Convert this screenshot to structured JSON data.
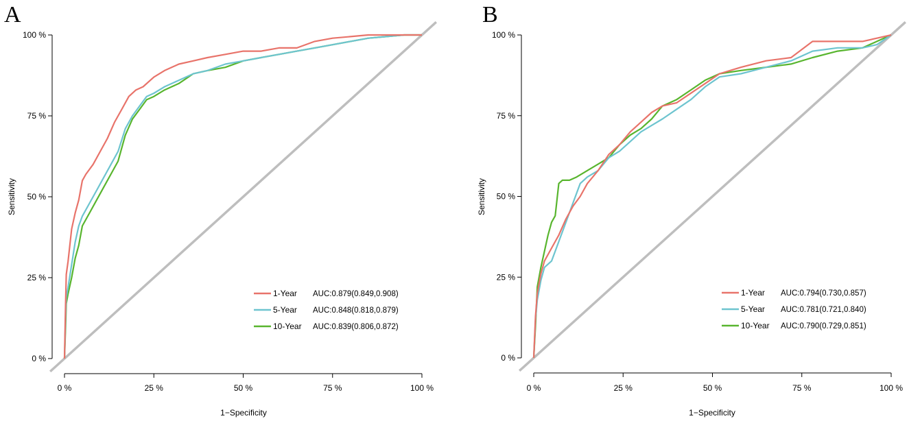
{
  "chart_data": [
    {
      "panel": "A",
      "type": "line",
      "xlabel": "1−Specificity",
      "ylabel": "Sensitivity",
      "xlim": [
        0,
        1
      ],
      "ylim": [
        0,
        1
      ],
      "x_ticks": [
        "0 %",
        "25 %",
        "50 %",
        "75 %",
        "100 %"
      ],
      "y_ticks": [
        "0 %",
        "25 %",
        "50 %",
        "75 %",
        "100 %"
      ],
      "legend_position": "bottom-right",
      "reference_line": {
        "x": [
          -0.04,
          1.04
        ],
        "y": [
          -0.04,
          1.04
        ],
        "color": "#bebebe"
      },
      "series": [
        {
          "name": "1-Year",
          "auc": "AUC:0.879(0.849,0.908)",
          "color": "#e8736a",
          "x": [
            0,
            0.003,
            0.005,
            0.01,
            0.015,
            0.02,
            0.03,
            0.04,
            0.05,
            0.06,
            0.08,
            0.1,
            0.12,
            0.14,
            0.16,
            0.18,
            0.2,
            0.22,
            0.25,
            0.28,
            0.32,
            0.36,
            0.4,
            0.45,
            0.5,
            0.55,
            0.6,
            0.65,
            0.7,
            0.75,
            0.8,
            0.85,
            0.9,
            0.95,
            1.0
          ],
          "y": [
            0,
            0.17,
            0.26,
            0.3,
            0.35,
            0.4,
            0.45,
            0.49,
            0.55,
            0.57,
            0.6,
            0.64,
            0.68,
            0.73,
            0.77,
            0.81,
            0.83,
            0.84,
            0.87,
            0.89,
            0.91,
            0.92,
            0.93,
            0.94,
            0.95,
            0.95,
            0.96,
            0.96,
            0.98,
            0.99,
            0.995,
            1.0,
            1.0,
            1.0,
            1.0
          ]
        },
        {
          "name": "5-Year",
          "auc": "AUC:0.848(0.818,0.879)",
          "color": "#6dc4cf",
          "x": [
            0,
            0.003,
            0.005,
            0.01,
            0.02,
            0.03,
            0.04,
            0.05,
            0.07,
            0.09,
            0.11,
            0.13,
            0.15,
            0.17,
            0.19,
            0.21,
            0.23,
            0.25,
            0.28,
            0.32,
            0.36,
            0.4,
            0.45,
            0.5,
            0.55,
            0.6,
            0.65,
            0.7,
            0.75,
            0.8,
            0.85,
            0.9,
            0.95,
            1.0
          ],
          "y": [
            0,
            0.13,
            0.19,
            0.22,
            0.29,
            0.36,
            0.41,
            0.44,
            0.48,
            0.52,
            0.56,
            0.6,
            0.64,
            0.71,
            0.75,
            0.78,
            0.81,
            0.82,
            0.84,
            0.86,
            0.88,
            0.89,
            0.91,
            0.92,
            0.93,
            0.94,
            0.95,
            0.96,
            0.97,
            0.98,
            0.99,
            0.995,
            1.0,
            1.0
          ]
        },
        {
          "name": "10-Year",
          "auc": "AUC:0.839(0.806,0.872)",
          "color": "#58b52e",
          "x": [
            0,
            0.003,
            0.005,
            0.01,
            0.02,
            0.03,
            0.04,
            0.05,
            0.07,
            0.09,
            0.11,
            0.13,
            0.15,
            0.17,
            0.19,
            0.21,
            0.23,
            0.25,
            0.28,
            0.32,
            0.36,
            0.4,
            0.45,
            0.5,
            0.55,
            0.6,
            0.65,
            0.7,
            0.75,
            0.8,
            0.85,
            0.9,
            0.95,
            1.0
          ],
          "y": [
            0,
            0.1,
            0.17,
            0.2,
            0.25,
            0.31,
            0.35,
            0.41,
            0.45,
            0.49,
            0.53,
            0.57,
            0.61,
            0.69,
            0.74,
            0.77,
            0.8,
            0.81,
            0.83,
            0.85,
            0.88,
            0.89,
            0.9,
            0.92,
            0.93,
            0.94,
            0.95,
            0.96,
            0.97,
            0.98,
            0.99,
            0.995,
            1.0,
            1.0
          ]
        }
      ]
    },
    {
      "panel": "B",
      "type": "line",
      "xlabel": "1−Specificity",
      "ylabel": "Sensitivity",
      "xlim": [
        0,
        1
      ],
      "ylim": [
        0,
        1
      ],
      "x_ticks": [
        "0 %",
        "25 %",
        "50 %",
        "75 %",
        "100 %"
      ],
      "y_ticks": [
        "0 %",
        "25 %",
        "50 %",
        "75 %",
        "100 %"
      ],
      "legend_position": "bottom-right",
      "reference_line": {
        "x": [
          -0.04,
          1.04
        ],
        "y": [
          -0.04,
          1.04
        ],
        "color": "#bebebe"
      },
      "series": [
        {
          "name": "1-Year",
          "auc": "AUC:0.794(0.730,0.857)",
          "color": "#e8736a",
          "x": [
            0,
            0.005,
            0.01,
            0.02,
            0.03,
            0.05,
            0.07,
            0.09,
            0.11,
            0.13,
            0.15,
            0.18,
            0.21,
            0.24,
            0.27,
            0.3,
            0.33,
            0.36,
            0.4,
            0.44,
            0.48,
            0.52,
            0.58,
            0.65,
            0.72,
            0.78,
            0.85,
            0.92,
            0.96,
            1.0
          ],
          "y": [
            0,
            0.13,
            0.2,
            0.26,
            0.3,
            0.34,
            0.38,
            0.43,
            0.47,
            0.5,
            0.54,
            0.58,
            0.63,
            0.66,
            0.7,
            0.73,
            0.76,
            0.78,
            0.79,
            0.82,
            0.85,
            0.88,
            0.9,
            0.92,
            0.93,
            0.98,
            0.98,
            0.98,
            0.99,
            1.0
          ]
        },
        {
          "name": "5-Year",
          "auc": "AUC:0.781(0.721,0.840)",
          "color": "#6dc4cf",
          "x": [
            0,
            0.005,
            0.01,
            0.02,
            0.03,
            0.05,
            0.07,
            0.09,
            0.11,
            0.13,
            0.15,
            0.18,
            0.21,
            0.24,
            0.27,
            0.3,
            0.33,
            0.36,
            0.4,
            0.44,
            0.48,
            0.52,
            0.58,
            0.65,
            0.72,
            0.78,
            0.85,
            0.92,
            0.96,
            1.0
          ],
          "y": [
            0,
            0.12,
            0.18,
            0.24,
            0.28,
            0.3,
            0.36,
            0.42,
            0.48,
            0.54,
            0.56,
            0.58,
            0.62,
            0.64,
            0.67,
            0.7,
            0.72,
            0.74,
            0.77,
            0.8,
            0.84,
            0.87,
            0.88,
            0.9,
            0.92,
            0.95,
            0.96,
            0.96,
            0.97,
            1.0
          ]
        },
        {
          "name": "10-Year",
          "auc": "AUC:0.790(0.729,0.851)",
          "color": "#58b52e",
          "x": [
            0,
            0.005,
            0.01,
            0.02,
            0.03,
            0.04,
            0.05,
            0.06,
            0.07,
            0.08,
            0.1,
            0.12,
            0.15,
            0.18,
            0.21,
            0.24,
            0.27,
            0.3,
            0.33,
            0.36,
            0.4,
            0.44,
            0.48,
            0.52,
            0.58,
            0.65,
            0.72,
            0.78,
            0.85,
            0.92,
            0.96,
            1.0
          ],
          "y": [
            0,
            0.1,
            0.22,
            0.28,
            0.33,
            0.38,
            0.42,
            0.44,
            0.54,
            0.55,
            0.55,
            0.56,
            0.58,
            0.6,
            0.62,
            0.66,
            0.69,
            0.71,
            0.74,
            0.78,
            0.8,
            0.83,
            0.86,
            0.88,
            0.89,
            0.9,
            0.91,
            0.93,
            0.95,
            0.96,
            0.98,
            1.0
          ]
        }
      ]
    }
  ]
}
